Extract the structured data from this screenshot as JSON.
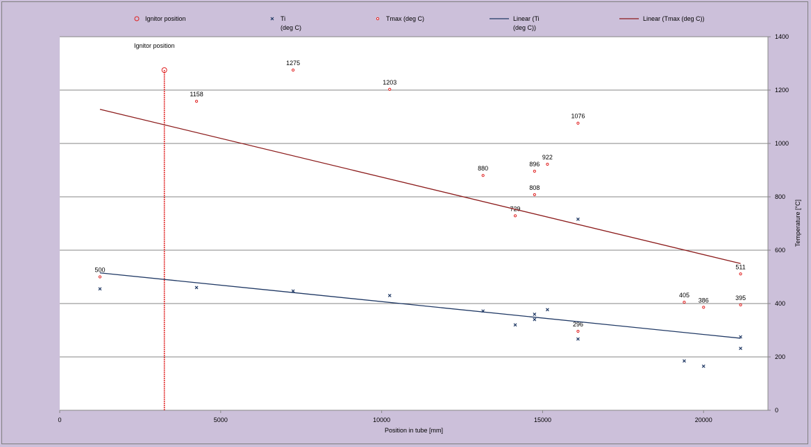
{
  "chart_data": {
    "type": "scatter",
    "xlabel": "Position in tube [mm]",
    "ylabel": "Temperature [°C]",
    "xlim": [
      0,
      22000
    ],
    "ylim": [
      0,
      1400
    ],
    "x_ticks": [
      "0",
      "5000",
      "10000",
      "15000",
      "20000"
    ],
    "x_tick_values": [
      0,
      5000,
      10000,
      15000,
      20000
    ],
    "y_ticks": [
      "0",
      "200",
      "400",
      "600",
      "800",
      "1000",
      "1200",
      "1400"
    ],
    "y_tick_values": [
      0,
      200,
      400,
      600,
      800,
      1000,
      1200,
      1400
    ],
    "grid": "horizontal",
    "legend_position": "top",
    "annotation": "Ignitor position",
    "series": [
      {
        "name": "Ignitor position",
        "marker": "open-circle",
        "color": "#e02020",
        "points": [
          [
            3250,
            1275
          ]
        ],
        "drop_line_to": 0
      },
      {
        "name": "Ti (deg C)",
        "legend_lines": [
          "Ti",
          "(deg C)"
        ],
        "marker": "x",
        "color": "#1f3864",
        "points": [
          [
            1250,
            455
          ],
          [
            4250,
            460
          ],
          [
            7250,
            447
          ],
          [
            10250,
            430
          ],
          [
            13150,
            372
          ],
          [
            14150,
            320
          ],
          [
            14750,
            340
          ],
          [
            14750,
            360
          ],
          [
            15150,
            377
          ],
          [
            16100,
            267
          ],
          [
            16100,
            716
          ],
          [
            19400,
            185
          ],
          [
            20000,
            165
          ],
          [
            21150,
            232
          ],
          [
            21150,
            275
          ]
        ]
      },
      {
        "name": "Tmax (deg C)",
        "marker": "small-circle",
        "color": "#e02020",
        "points": [
          [
            1250,
            500
          ],
          [
            4250,
            1158
          ],
          [
            7250,
            1275
          ],
          [
            10250,
            1203
          ],
          [
            13150,
            880
          ],
          [
            14150,
            729
          ],
          [
            14750,
            808
          ],
          [
            14750,
            896
          ],
          [
            15150,
            922
          ],
          [
            16100,
            1076
          ],
          [
            16100,
            296
          ],
          [
            19400,
            405
          ],
          [
            20000,
            386
          ],
          [
            21150,
            395
          ],
          [
            21150,
            511
          ]
        ],
        "labels": [
          "500",
          "1158",
          "1275",
          "1203",
          "880",
          "729",
          "808",
          "896",
          "922",
          "1076",
          "296",
          "405",
          "386",
          "395",
          "511"
        ]
      },
      {
        "name": "Linear (Ti (deg C))",
        "legend_lines": [
          "Linear (Ti",
          "(deg C))"
        ],
        "type": "line",
        "color": "#1f3864",
        "points": [
          [
            1250,
            515
          ],
          [
            21150,
            270
          ]
        ]
      },
      {
        "name": "Linear (Tmax (deg C))",
        "type": "line",
        "color": "#8b1a1a",
        "points": [
          [
            1250,
            1128
          ],
          [
            21150,
            550
          ]
        ]
      }
    ]
  }
}
